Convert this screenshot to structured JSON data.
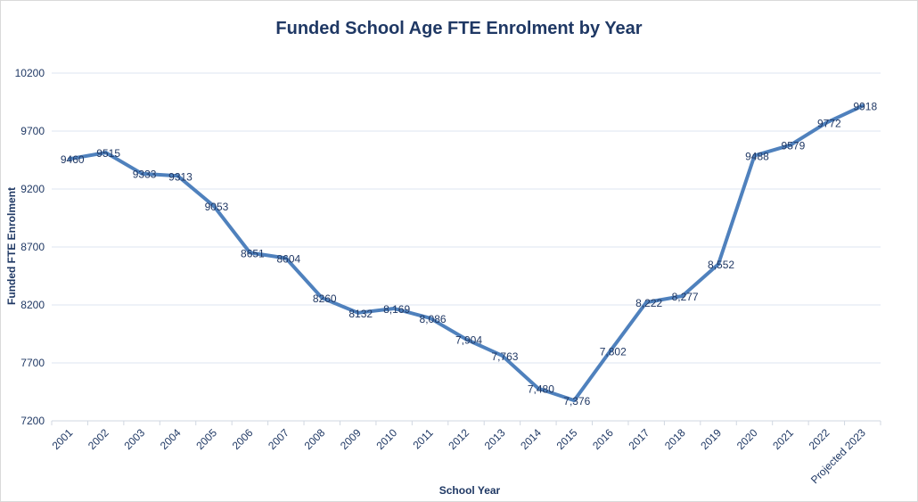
{
  "chart_data": {
    "type": "line",
    "title": "Funded School Age FTE Enrolment by Year",
    "xlabel": "School Year",
    "ylabel": "Funded FTE Enrolment",
    "ylim": [
      7200,
      10200
    ],
    "yticks": [
      "7200",
      "7700",
      "8200",
      "8700",
      "9200",
      "9700",
      "10200"
    ],
    "grid": true,
    "legend": "none",
    "line_color": "#4f81bd",
    "categories": [
      "2001",
      "2002",
      "2003",
      "2004",
      "2005",
      "2006",
      "2007",
      "2008",
      "2009",
      "2010",
      "2011",
      "2012",
      "2013",
      "2014",
      "2015",
      "2016",
      "2017",
      "2018",
      "2019",
      "2020",
      "2021",
      "2022",
      "Projected 2023"
    ],
    "series": [
      {
        "values": [
          9460,
          9515,
          9333,
          9313,
          9053,
          8651,
          8604,
          8260,
          8132,
          8169,
          8086,
          7904,
          7763,
          7480,
          7376,
          7802,
          8222,
          8277,
          8552,
          9488,
          9579,
          9772,
          9918
        ],
        "labels": [
          "9460",
          "9515",
          "9333",
          "9313",
          "9053",
          "8651",
          "8604",
          "8260",
          "8132",
          "8,169",
          "8,086",
          "7,904",
          "7,763",
          "7,480",
          "7,376",
          "7,802",
          "8,222",
          "8,277",
          "8,552",
          "9488",
          "9579",
          "9772",
          "9918"
        ]
      }
    ]
  }
}
